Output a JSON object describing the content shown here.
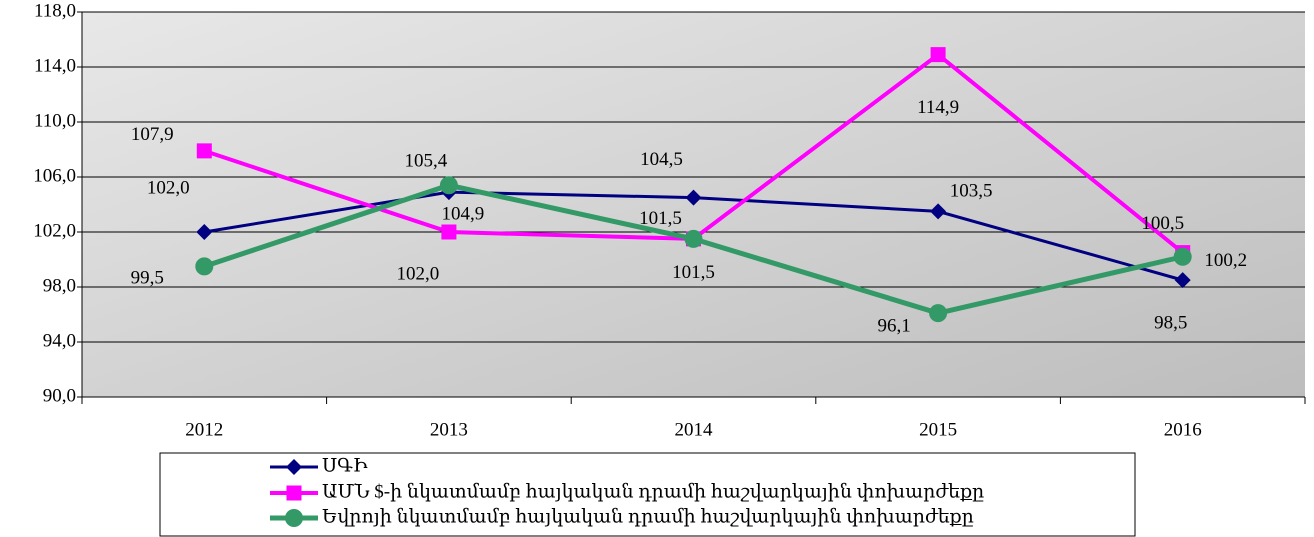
{
  "chart_data": {
    "type": "line",
    "categories": [
      "2012",
      "2013",
      "2014",
      "2015",
      "2016"
    ],
    "series": [
      {
        "name": "ՍԳԻ",
        "color": "#000080",
        "marker": "diamond",
        "values": [
          102.0,
          104.9,
          104.5,
          103.5,
          98.5
        ],
        "value_labels": [
          "102,0",
          "104,9",
          "104,5",
          "103,5",
          "98,5"
        ]
      },
      {
        "name": "ԱՄՆ $-ի նկատմամբ հայկական դրամի հաշվարկային փոխարժեքը",
        "color": "#ff00ff",
        "marker": "square",
        "values": [
          107.9,
          102.0,
          101.5,
          114.9,
          100.5
        ],
        "value_labels": [
          "107,9",
          "102,0",
          "101,5",
          "114,9",
          "100,5"
        ]
      },
      {
        "name": "Եվրոյի նկատմամբ հայկական դրամի հաշվարկային փոխարժեքը",
        "color": "#339966",
        "marker": "circle",
        "values": [
          99.5,
          105.4,
          101.5,
          96.1,
          100.2
        ],
        "value_labels": [
          "99,5",
          "105,4",
          "101,5",
          "96,1",
          "100,2"
        ]
      }
    ],
    "ylim": [
      90,
      118
    ],
    "yticks": [
      {
        "value": 90,
        "label": "90,0"
      },
      {
        "value": 94,
        "label": "94,0"
      },
      {
        "value": 98,
        "label": "98,0"
      },
      {
        "value": 102,
        "label": "102,0"
      },
      {
        "value": 106,
        "label": "106,0"
      },
      {
        "value": 110,
        "label": "110,0"
      },
      {
        "value": 114,
        "label": "114,0"
      },
      {
        "value": 118,
        "label": "118,0"
      }
    ],
    "grid": true,
    "legend": "bottom"
  }
}
